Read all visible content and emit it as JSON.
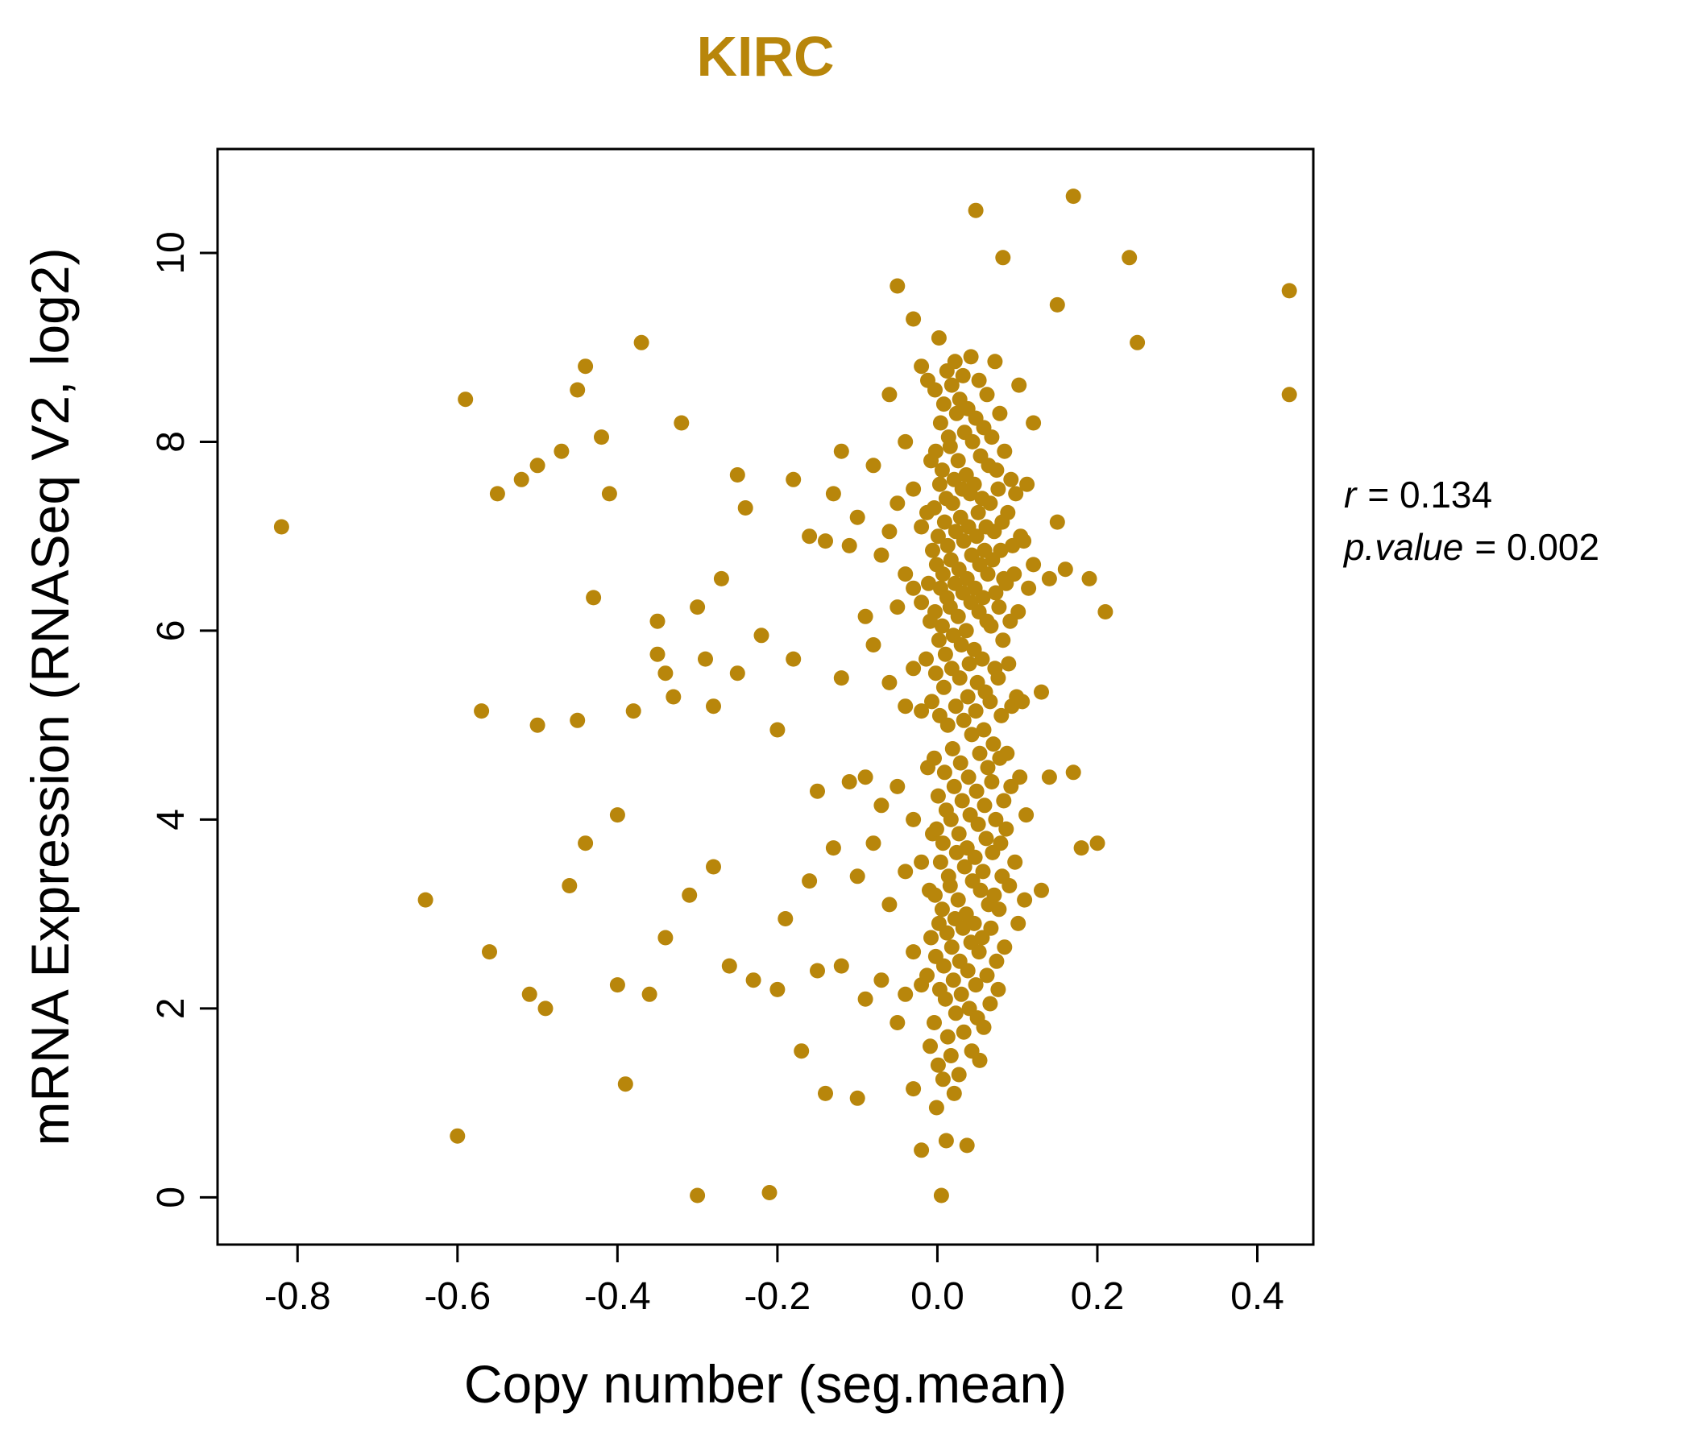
{
  "accent_color": "#B8860B",
  "point_color": "#B8860B",
  "stats": {
    "line1": {
      "var": "r",
      "rest": "= 0.134"
    },
    "line2": {
      "var": "p.value",
      "rest": "= 0.002"
    }
  },
  "chart_data": {
    "type": "scatter",
    "title": "KIRC",
    "xlabel": "Copy number (seg.mean)",
    "ylabel": "mRNA Expression (RNASeq V2, log2)",
    "xlim": [
      -0.9,
      0.47
    ],
    "ylim": [
      -0.5,
      11.1
    ],
    "xticks": [
      -0.8,
      -0.6,
      -0.4,
      -0.2,
      0.0,
      0.2,
      0.4
    ],
    "yticks": [
      0,
      2,
      4,
      6,
      8,
      10
    ],
    "grid": false,
    "legend": "none",
    "annotation": {
      "r": 0.134,
      "p_value": 0.002
    },
    "points": [
      [
        -0.82,
        7.1
      ],
      [
        -0.64,
        3.15
      ],
      [
        -0.6,
        0.65
      ],
      [
        -0.59,
        8.45
      ],
      [
        -0.57,
        5.15
      ],
      [
        -0.56,
        2.6
      ],
      [
        -0.55,
        7.45
      ],
      [
        -0.52,
        7.6
      ],
      [
        -0.51,
        2.15
      ],
      [
        -0.5,
        7.75
      ],
      [
        -0.5,
        5.0
      ],
      [
        -0.49,
        2.0
      ],
      [
        -0.47,
        7.9
      ],
      [
        -0.46,
        3.3
      ],
      [
        -0.45,
        5.05
      ],
      [
        -0.45,
        8.55
      ],
      [
        -0.44,
        8.8
      ],
      [
        -0.44,
        3.75
      ],
      [
        -0.43,
        6.35
      ],
      [
        -0.42,
        8.05
      ],
      [
        -0.41,
        7.45
      ],
      [
        -0.4,
        4.05
      ],
      [
        -0.4,
        2.25
      ],
      [
        -0.39,
        1.2
      ],
      [
        -0.38,
        5.15
      ],
      [
        -0.37,
        9.05
      ],
      [
        -0.36,
        2.15
      ],
      [
        -0.35,
        6.1
      ],
      [
        -0.35,
        5.75
      ],
      [
        -0.34,
        5.55
      ],
      [
        -0.34,
        2.75
      ],
      [
        -0.33,
        5.3
      ],
      [
        -0.32,
        8.2
      ],
      [
        -0.31,
        3.2
      ],
      [
        -0.3,
        6.25
      ],
      [
        -0.3,
        0.02
      ],
      [
        -0.29,
        5.7
      ],
      [
        -0.28,
        3.5
      ],
      [
        -0.28,
        5.2
      ],
      [
        -0.27,
        6.55
      ],
      [
        -0.26,
        2.45
      ],
      [
        -0.25,
        7.65
      ],
      [
        -0.25,
        5.55
      ],
      [
        -0.24,
        7.3
      ],
      [
        -0.23,
        2.3
      ],
      [
        -0.22,
        5.95
      ],
      [
        -0.21,
        0.05
      ],
      [
        -0.2,
        2.2
      ],
      [
        -0.2,
        4.95
      ],
      [
        -0.19,
        2.95
      ],
      [
        -0.18,
        7.6
      ],
      [
        -0.18,
        5.7
      ],
      [
        -0.17,
        1.55
      ],
      [
        -0.16,
        3.35
      ],
      [
        -0.16,
        7.0
      ],
      [
        -0.15,
        4.3
      ],
      [
        -0.15,
        2.4
      ],
      [
        -0.14,
        1.1
      ],
      [
        -0.14,
        6.95
      ],
      [
        -0.13,
        3.7
      ],
      [
        -0.13,
        7.45
      ],
      [
        -0.12,
        7.9
      ],
      [
        -0.12,
        2.45
      ],
      [
        -0.12,
        5.5
      ],
      [
        -0.11,
        6.9
      ],
      [
        -0.11,
        4.4
      ],
      [
        -0.1,
        7.2
      ],
      [
        -0.1,
        3.4
      ],
      [
        -0.1,
        1.05
      ],
      [
        -0.09,
        6.15
      ],
      [
        -0.09,
        4.45
      ],
      [
        -0.09,
        2.1
      ],
      [
        -0.08,
        7.75
      ],
      [
        -0.08,
        5.85
      ],
      [
        -0.08,
        3.75
      ],
      [
        -0.07,
        6.8
      ],
      [
        -0.07,
        4.15
      ],
      [
        -0.07,
        2.3
      ],
      [
        -0.06,
        8.5
      ],
      [
        -0.06,
        7.05
      ],
      [
        -0.06,
        5.45
      ],
      [
        -0.06,
        3.1
      ],
      [
        -0.05,
        9.65
      ],
      [
        -0.05,
        7.35
      ],
      [
        -0.05,
        6.25
      ],
      [
        -0.05,
        4.35
      ],
      [
        -0.05,
        1.85
      ],
      [
        -0.04,
        8.0
      ],
      [
        -0.04,
        6.6
      ],
      [
        -0.04,
        5.2
      ],
      [
        -0.04,
        3.45
      ],
      [
        -0.04,
        2.15
      ],
      [
        -0.03,
        9.3
      ],
      [
        -0.03,
        7.5
      ],
      [
        -0.03,
        6.45
      ],
      [
        -0.03,
        5.6
      ],
      [
        -0.03,
        4.0
      ],
      [
        -0.03,
        2.6
      ],
      [
        -0.03,
        1.15
      ],
      [
        -0.02,
        8.8
      ],
      [
        -0.02,
        7.1
      ],
      [
        -0.02,
        6.3
      ],
      [
        -0.02,
        5.15
      ],
      [
        -0.02,
        3.55
      ],
      [
        -0.02,
        2.25
      ],
      [
        -0.02,
        0.5
      ],
      [
        -0.012,
        8.65
      ],
      [
        -0.008,
        7.8
      ],
      [
        -0.013,
        7.25
      ],
      [
        -0.006,
        6.85
      ],
      [
        -0.011,
        6.5
      ],
      [
        -0.009,
        6.1
      ],
      [
        -0.014,
        5.7
      ],
      [
        -0.007,
        5.25
      ],
      [
        -0.012,
        4.55
      ],
      [
        -0.006,
        3.85
      ],
      [
        -0.01,
        3.25
      ],
      [
        -0.008,
        2.75
      ],
      [
        -0.013,
        2.35
      ],
      [
        -0.009,
        1.6
      ],
      [
        0.002,
        9.1
      ],
      [
        -0.003,
        8.55
      ],
      [
        0.004,
        8.2
      ],
      [
        -0.002,
        7.9
      ],
      [
        0.003,
        7.55
      ],
      [
        -0.004,
        7.3
      ],
      [
        0.001,
        7.0
      ],
      [
        -0.001,
        6.7
      ],
      [
        0.004,
        6.45
      ],
      [
        -0.003,
        6.2
      ],
      [
        0.002,
        5.9
      ],
      [
        -0.002,
        5.55
      ],
      [
        0.003,
        5.1
      ],
      [
        -0.004,
        4.65
      ],
      [
        0.001,
        4.25
      ],
      [
        -0.001,
        3.9
      ],
      [
        0.004,
        3.55
      ],
      [
        -0.003,
        3.2
      ],
      [
        0.002,
        2.9
      ],
      [
        -0.002,
        2.55
      ],
      [
        0.003,
        2.2
      ],
      [
        -0.004,
        1.85
      ],
      [
        0.001,
        1.4
      ],
      [
        -0.001,
        0.95
      ],
      [
        0.005,
        0.02
      ],
      [
        0.012,
        8.75
      ],
      [
        0.008,
        8.4
      ],
      [
        0.014,
        8.05
      ],
      [
        0.006,
        7.7
      ],
      [
        0.011,
        7.4
      ],
      [
        0.009,
        7.15
      ],
      [
        0.013,
        6.9
      ],
      [
        0.007,
        6.6
      ],
      [
        0.012,
        6.35
      ],
      [
        0.006,
        6.05
      ],
      [
        0.01,
        5.75
      ],
      [
        0.008,
        5.4
      ],
      [
        0.013,
        5.0
      ],
      [
        0.009,
        4.5
      ],
      [
        0.011,
        4.1
      ],
      [
        0.007,
        3.75
      ],
      [
        0.014,
        3.4
      ],
      [
        0.006,
        3.05
      ],
      [
        0.012,
        2.8
      ],
      [
        0.008,
        2.45
      ],
      [
        0.01,
        2.1
      ],
      [
        0.013,
        1.7
      ],
      [
        0.007,
        1.25
      ],
      [
        0.011,
        0.6
      ],
      [
        0.022,
        8.85
      ],
      [
        0.018,
        8.6
      ],
      [
        0.024,
        8.3
      ],
      [
        0.016,
        7.95
      ],
      [
        0.021,
        7.6
      ],
      [
        0.019,
        7.35
      ],
      [
        0.023,
        7.05
      ],
      [
        0.017,
        6.75
      ],
      [
        0.022,
        6.5
      ],
      [
        0.016,
        6.25
      ],
      [
        0.02,
        5.95
      ],
      [
        0.018,
        5.6
      ],
      [
        0.023,
        5.2
      ],
      [
        0.019,
        4.75
      ],
      [
        0.021,
        4.35
      ],
      [
        0.017,
        4.0
      ],
      [
        0.024,
        3.65
      ],
      [
        0.016,
        3.3
      ],
      [
        0.022,
        2.95
      ],
      [
        0.018,
        2.65
      ],
      [
        0.02,
        2.3
      ],
      [
        0.023,
        1.95
      ],
      [
        0.017,
        1.5
      ],
      [
        0.021,
        1.1
      ],
      [
        0.032,
        8.7
      ],
      [
        0.028,
        8.45
      ],
      [
        0.034,
        8.1
      ],
      [
        0.026,
        7.8
      ],
      [
        0.031,
        7.5
      ],
      [
        0.029,
        7.2
      ],
      [
        0.033,
        6.95
      ],
      [
        0.027,
        6.65
      ],
      [
        0.032,
        6.4
      ],
      [
        0.026,
        6.15
      ],
      [
        0.03,
        5.85
      ],
      [
        0.028,
        5.5
      ],
      [
        0.033,
        5.05
      ],
      [
        0.029,
        4.6
      ],
      [
        0.031,
        4.2
      ],
      [
        0.027,
        3.85
      ],
      [
        0.034,
        3.5
      ],
      [
        0.026,
        3.15
      ],
      [
        0.032,
        2.85
      ],
      [
        0.028,
        2.5
      ],
      [
        0.03,
        2.15
      ],
      [
        0.033,
        1.75
      ],
      [
        0.027,
        1.3
      ],
      [
        0.042,
        8.9
      ],
      [
        0.038,
        8.35
      ],
      [
        0.044,
        8.0
      ],
      [
        0.036,
        7.65
      ],
      [
        0.041,
        7.45
      ],
      [
        0.039,
        7.1
      ],
      [
        0.043,
        6.8
      ],
      [
        0.037,
        6.55
      ],
      [
        0.042,
        6.3
      ],
      [
        0.036,
        6.0
      ],
      [
        0.04,
        5.65
      ],
      [
        0.038,
        5.3
      ],
      [
        0.043,
        4.9
      ],
      [
        0.039,
        4.45
      ],
      [
        0.041,
        4.05
      ],
      [
        0.037,
        3.7
      ],
      [
        0.044,
        3.35
      ],
      [
        0.036,
        3.0
      ],
      [
        0.042,
        2.7
      ],
      [
        0.038,
        2.4
      ],
      [
        0.04,
        2.0
      ],
      [
        0.043,
        1.55
      ],
      [
        0.037,
        0.55
      ],
      [
        0.048,
        10.45
      ],
      [
        0.052,
        8.65
      ],
      [
        0.048,
        8.25
      ],
      [
        0.054,
        7.85
      ],
      [
        0.046,
        7.55
      ],
      [
        0.051,
        7.25
      ],
      [
        0.049,
        7.0
      ],
      [
        0.053,
        6.7
      ],
      [
        0.047,
        6.45
      ],
      [
        0.052,
        6.2
      ],
      [
        0.046,
        5.8
      ],
      [
        0.05,
        5.45
      ],
      [
        0.048,
        5.15
      ],
      [
        0.053,
        4.7
      ],
      [
        0.049,
        4.3
      ],
      [
        0.051,
        3.95
      ],
      [
        0.047,
        3.6
      ],
      [
        0.054,
        3.25
      ],
      [
        0.046,
        2.9
      ],
      [
        0.052,
        2.6
      ],
      [
        0.048,
        2.25
      ],
      [
        0.05,
        1.9
      ],
      [
        0.053,
        1.45
      ],
      [
        0.062,
        8.5
      ],
      [
        0.058,
        8.15
      ],
      [
        0.064,
        7.75
      ],
      [
        0.056,
        7.4
      ],
      [
        0.061,
        7.1
      ],
      [
        0.059,
        6.85
      ],
      [
        0.063,
        6.6
      ],
      [
        0.057,
        6.35
      ],
      [
        0.062,
        6.1
      ],
      [
        0.056,
        5.7
      ],
      [
        0.06,
        5.35
      ],
      [
        0.058,
        4.95
      ],
      [
        0.063,
        4.55
      ],
      [
        0.059,
        4.15
      ],
      [
        0.061,
        3.8
      ],
      [
        0.057,
        3.45
      ],
      [
        0.064,
        3.1
      ],
      [
        0.056,
        2.75
      ],
      [
        0.062,
        2.35
      ],
      [
        0.058,
        1.8
      ],
      [
        0.072,
        8.85
      ],
      [
        0.068,
        8.05
      ],
      [
        0.074,
        7.7
      ],
      [
        0.066,
        7.35
      ],
      [
        0.071,
        7.05
      ],
      [
        0.069,
        6.75
      ],
      [
        0.073,
        6.4
      ],
      [
        0.067,
        6.05
      ],
      [
        0.072,
        5.6
      ],
      [
        0.066,
        5.25
      ],
      [
        0.07,
        4.8
      ],
      [
        0.068,
        4.4
      ],
      [
        0.073,
        4.0
      ],
      [
        0.069,
        3.65
      ],
      [
        0.071,
        3.2
      ],
      [
        0.067,
        2.85
      ],
      [
        0.074,
        2.5
      ],
      [
        0.066,
        2.05
      ],
      [
        0.082,
        9.95
      ],
      [
        0.078,
        8.3
      ],
      [
        0.084,
        7.9
      ],
      [
        0.076,
        7.5
      ],
      [
        0.081,
        7.15
      ],
      [
        0.079,
        6.85
      ],
      [
        0.083,
        6.55
      ],
      [
        0.077,
        6.25
      ],
      [
        0.082,
        5.9
      ],
      [
        0.076,
        5.5
      ],
      [
        0.08,
        5.1
      ],
      [
        0.078,
        4.65
      ],
      [
        0.083,
        4.2
      ],
      [
        0.079,
        3.75
      ],
      [
        0.081,
        3.4
      ],
      [
        0.077,
        3.05
      ],
      [
        0.084,
        2.65
      ],
      [
        0.076,
        2.2
      ],
      [
        0.092,
        7.6
      ],
      [
        0.088,
        7.25
      ],
      [
        0.094,
        6.9
      ],
      [
        0.086,
        6.5
      ],
      [
        0.091,
        6.1
      ],
      [
        0.089,
        5.65
      ],
      [
        0.093,
        5.2
      ],
      [
        0.087,
        4.7
      ],
      [
        0.092,
        4.35
      ],
      [
        0.086,
        3.9
      ],
      [
        0.09,
        3.3
      ],
      [
        0.102,
        8.6
      ],
      [
        0.098,
        7.45
      ],
      [
        0.104,
        7.0
      ],
      [
        0.096,
        6.6
      ],
      [
        0.101,
        6.2
      ],
      [
        0.099,
        5.3
      ],
      [
        0.103,
        4.45
      ],
      [
        0.097,
        3.55
      ],
      [
        0.101,
        2.9
      ],
      [
        0.112,
        7.55
      ],
      [
        0.108,
        6.95
      ],
      [
        0.114,
        6.45
      ],
      [
        0.106,
        5.25
      ],
      [
        0.111,
        4.05
      ],
      [
        0.109,
        3.15
      ],
      [
        0.12,
        8.2
      ],
      [
        0.12,
        6.7
      ],
      [
        0.13,
        5.35
      ],
      [
        0.13,
        3.25
      ],
      [
        0.14,
        4.45
      ],
      [
        0.14,
        6.55
      ],
      [
        0.15,
        9.45
      ],
      [
        0.15,
        7.15
      ],
      [
        0.16,
        6.65
      ],
      [
        0.17,
        10.6
      ],
      [
        0.17,
        4.5
      ],
      [
        0.18,
        3.7
      ],
      [
        0.19,
        6.55
      ],
      [
        0.2,
        3.75
      ],
      [
        0.21,
        6.2
      ],
      [
        0.24,
        9.95
      ],
      [
        0.25,
        9.05
      ],
      [
        0.44,
        9.6
      ],
      [
        0.44,
        8.5
      ]
    ]
  }
}
